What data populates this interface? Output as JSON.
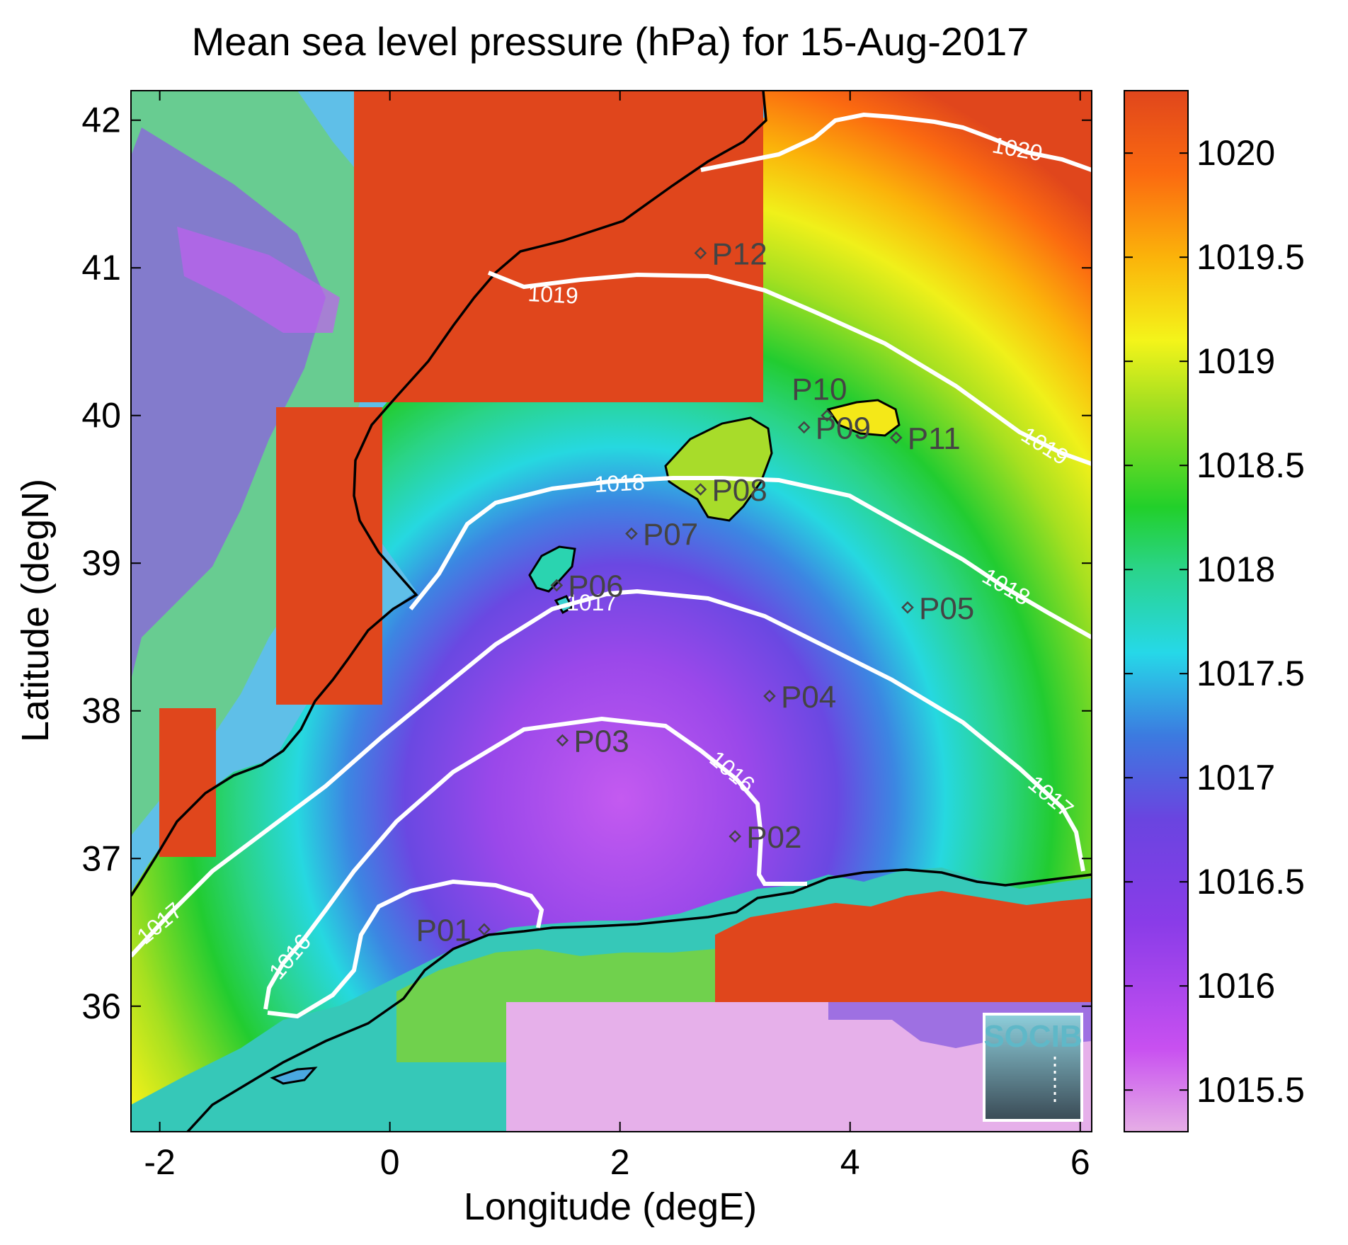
{
  "title": "Mean sea level pressure (hPa) for 15-Aug-2017",
  "x_axis": {
    "label": "Longitude (degE)",
    "range": [
      -2.25,
      6.1
    ],
    "ticks": [
      {
        "value": -2,
        "label": "-2"
      },
      {
        "value": 0,
        "label": "0"
      },
      {
        "value": 2,
        "label": "2"
      },
      {
        "value": 4,
        "label": "4"
      },
      {
        "value": 6,
        "label": "6"
      }
    ]
  },
  "y_axis": {
    "label": "Latitude (degN)",
    "range": [
      35.15,
      42.2
    ],
    "ticks": [
      {
        "value": 36,
        "label": "36"
      },
      {
        "value": 37,
        "label": "37"
      },
      {
        "value": 38,
        "label": "38"
      },
      {
        "value": 39,
        "label": "39"
      },
      {
        "value": 40,
        "label": "40"
      },
      {
        "value": 41,
        "label": "41"
      },
      {
        "value": 42,
        "label": "42"
      }
    ]
  },
  "colorbar": {
    "range": [
      1015.3,
      1020.3
    ],
    "ticks": [
      {
        "value": 1015.5,
        "label": "1015.5"
      },
      {
        "value": 1016,
        "label": "1016"
      },
      {
        "value": 1016.5,
        "label": "1016.5"
      },
      {
        "value": 1017,
        "label": "1017"
      },
      {
        "value": 1017.5,
        "label": "1017.5"
      },
      {
        "value": 1018,
        "label": "1018"
      },
      {
        "value": 1018.5,
        "label": "1018.5"
      },
      {
        "value": 1019,
        "label": "1019"
      },
      {
        "value": 1019.5,
        "label": "1019.5"
      },
      {
        "value": 1020,
        "label": "1020"
      }
    ],
    "colors": [
      "#e6aee6",
      "#c850f0",
      "#8a3ce8",
      "#3c7ae0",
      "#26d8e8",
      "#2ad48a",
      "#22d02a",
      "#a6e020",
      "#f4f41a",
      "#fbb30a",
      "#fb6a10",
      "#e0461c"
    ]
  },
  "contour_labels": {
    "c1016": "1016",
    "c1017": "1017",
    "c1018": "1018",
    "c1019": "1019",
    "c1020": "1020"
  },
  "stations": [
    {
      "id": "P01",
      "lon": 0.82,
      "lat": 36.52
    },
    {
      "id": "P02",
      "lon": 3.0,
      "lat": 37.15
    },
    {
      "id": "P03",
      "lon": 1.5,
      "lat": 37.8
    },
    {
      "id": "P04",
      "lon": 3.3,
      "lat": 38.1
    },
    {
      "id": "P05",
      "lon": 4.5,
      "lat": 38.7
    },
    {
      "id": "P06",
      "lon": 1.45,
      "lat": 38.85
    },
    {
      "id": "P07",
      "lon": 2.1,
      "lat": 39.2
    },
    {
      "id": "P08",
      "lon": 2.7,
      "lat": 39.5
    },
    {
      "id": "P09",
      "lon": 3.6,
      "lat": 39.92
    },
    {
      "id": "P10",
      "lon": 3.8,
      "lat": 40.0
    },
    {
      "id": "P11",
      "lon": 4.4,
      "lat": 39.85
    },
    {
      "id": "P12",
      "lon": 2.7,
      "lat": 41.1
    }
  ],
  "logo": {
    "text": "SOCIB"
  }
}
